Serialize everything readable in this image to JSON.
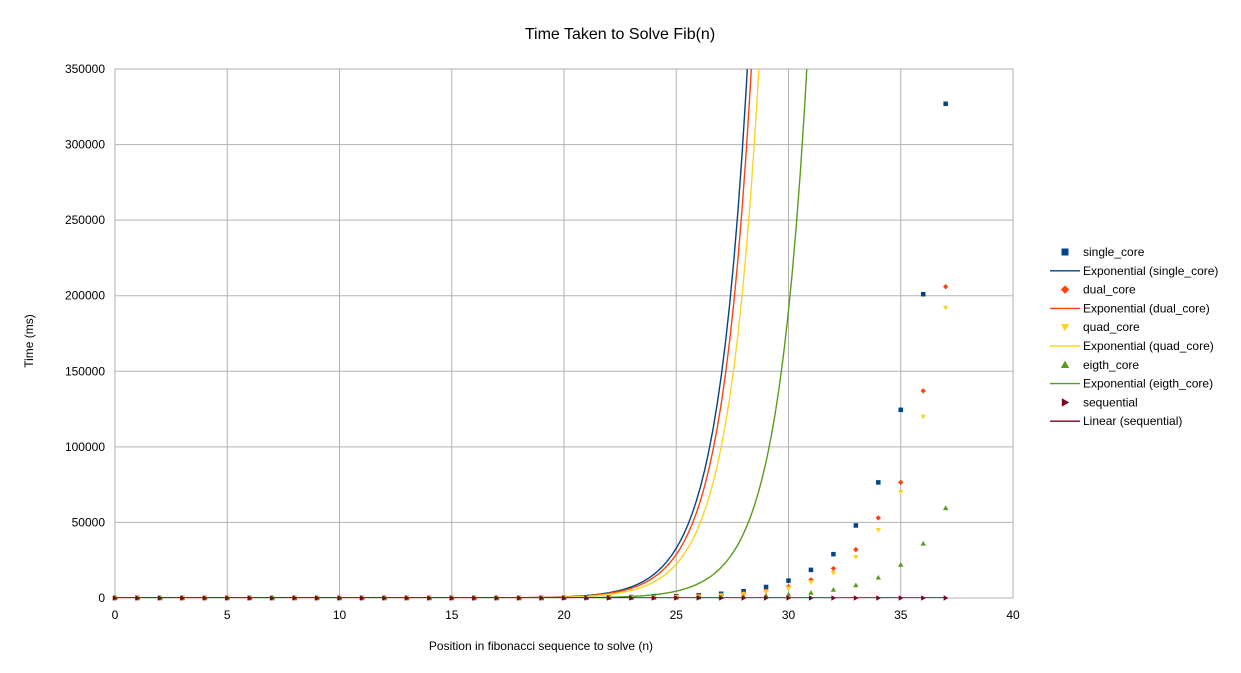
{
  "chart_data": {
    "type": "scatter",
    "title": "Time Taken to Solve Fib(n)",
    "xlabel": "Position in fibonacci sequence to solve (n)",
    "ylabel": "Time (ms)",
    "xlim": [
      0,
      40
    ],
    "ylim": [
      0,
      350000
    ],
    "x_ticks": [
      0,
      5,
      10,
      15,
      20,
      25,
      30,
      35,
      40
    ],
    "y_ticks": [
      0,
      50000,
      100000,
      150000,
      200000,
      250000,
      300000,
      350000
    ],
    "grid": true,
    "legend_position": "right",
    "x": [
      0,
      1,
      2,
      3,
      4,
      5,
      6,
      7,
      8,
      9,
      10,
      11,
      12,
      13,
      14,
      15,
      16,
      17,
      18,
      19,
      20,
      21,
      22,
      23,
      24,
      25,
      26,
      27,
      28,
      29,
      30,
      31,
      32,
      33,
      34,
      35,
      36,
      37
    ],
    "series": [
      {
        "name": "single_core",
        "marker": "square",
        "color": "#004586",
        "values": [
          0,
          0,
          0,
          0,
          0,
          0,
          0,
          0,
          0,
          0,
          0,
          0,
          0,
          0,
          0,
          0,
          0,
          0,
          0,
          0,
          150,
          250,
          400,
          600,
          900,
          1200,
          1800,
          2800,
          4500,
          7300,
          11500,
          18600,
          29000,
          48000,
          76500,
          124500,
          201000,
          327000
        ],
        "trendline": {
          "name": "Exponential (single_core)",
          "type": "exponential",
          "a": 0.000257,
          "b": 0.7467
        }
      },
      {
        "name": "dual_core",
        "marker": "diamond",
        "color": "#ff420e",
        "values": [
          0,
          0,
          0,
          0,
          0,
          0,
          0,
          0,
          0,
          0,
          0,
          0,
          0,
          0,
          0,
          0,
          0,
          0,
          0,
          0,
          100,
          150,
          250,
          400,
          600,
          900,
          1300,
          2000,
          3000,
          4800,
          7500,
          12000,
          19500,
          32000,
          53000,
          76500,
          137000,
          206000
        ],
        "trendline": {
          "name": "Exponential (dual_core)",
          "type": "exponential",
          "a": 0.000225,
          "b": 0.7467
        }
      },
      {
        "name": "quad_core",
        "marker": "triangle-down",
        "color": "#ffd320",
        "values": [
          0,
          0,
          0,
          0,
          0,
          0,
          0,
          0,
          0,
          0,
          0,
          0,
          0,
          0,
          0,
          0,
          0,
          0,
          0,
          0,
          80,
          120,
          200,
          300,
          500,
          700,
          1000,
          1600,
          2500,
          4000,
          6400,
          10500,
          16500,
          27000,
          45000,
          70000,
          120000,
          192000
        ],
        "trendline": {
          "name": "Exponential (quad_core)",
          "type": "exponential",
          "a": 0.000175,
          "b": 0.7467
        }
      },
      {
        "name": "eigth_core",
        "marker": "triangle-up",
        "color": "#579d1c",
        "values": [
          0,
          0,
          0,
          0,
          0,
          0,
          0,
          0,
          0,
          0,
          0,
          0,
          0,
          0,
          0,
          0,
          0,
          0,
          0,
          0,
          40,
          60,
          90,
          130,
          200,
          300,
          450,
          650,
          1000,
          1500,
          2300,
          3500,
          5500,
          8500,
          13500,
          22000,
          36000,
          59500
        ],
        "trendline": {
          "name": "Exponential (eigth_core)",
          "type": "exponential",
          "a": 3.55e-05,
          "b": 0.7467
        }
      },
      {
        "name": "sequential",
        "marker": "triangle-right",
        "color": "#7e0021",
        "values": [
          0,
          0,
          0,
          0,
          0,
          0,
          0,
          0,
          0,
          0,
          0,
          0,
          0,
          0,
          0,
          0,
          0,
          0,
          0,
          0,
          0,
          0,
          0,
          0,
          0,
          0,
          0,
          0,
          0,
          0,
          0,
          0,
          0,
          0,
          0,
          0,
          0,
          0
        ],
        "trendline": {
          "name": "Linear (sequential)",
          "type": "linear",
          "slope": 0,
          "intercept": 0
        }
      }
    ]
  }
}
